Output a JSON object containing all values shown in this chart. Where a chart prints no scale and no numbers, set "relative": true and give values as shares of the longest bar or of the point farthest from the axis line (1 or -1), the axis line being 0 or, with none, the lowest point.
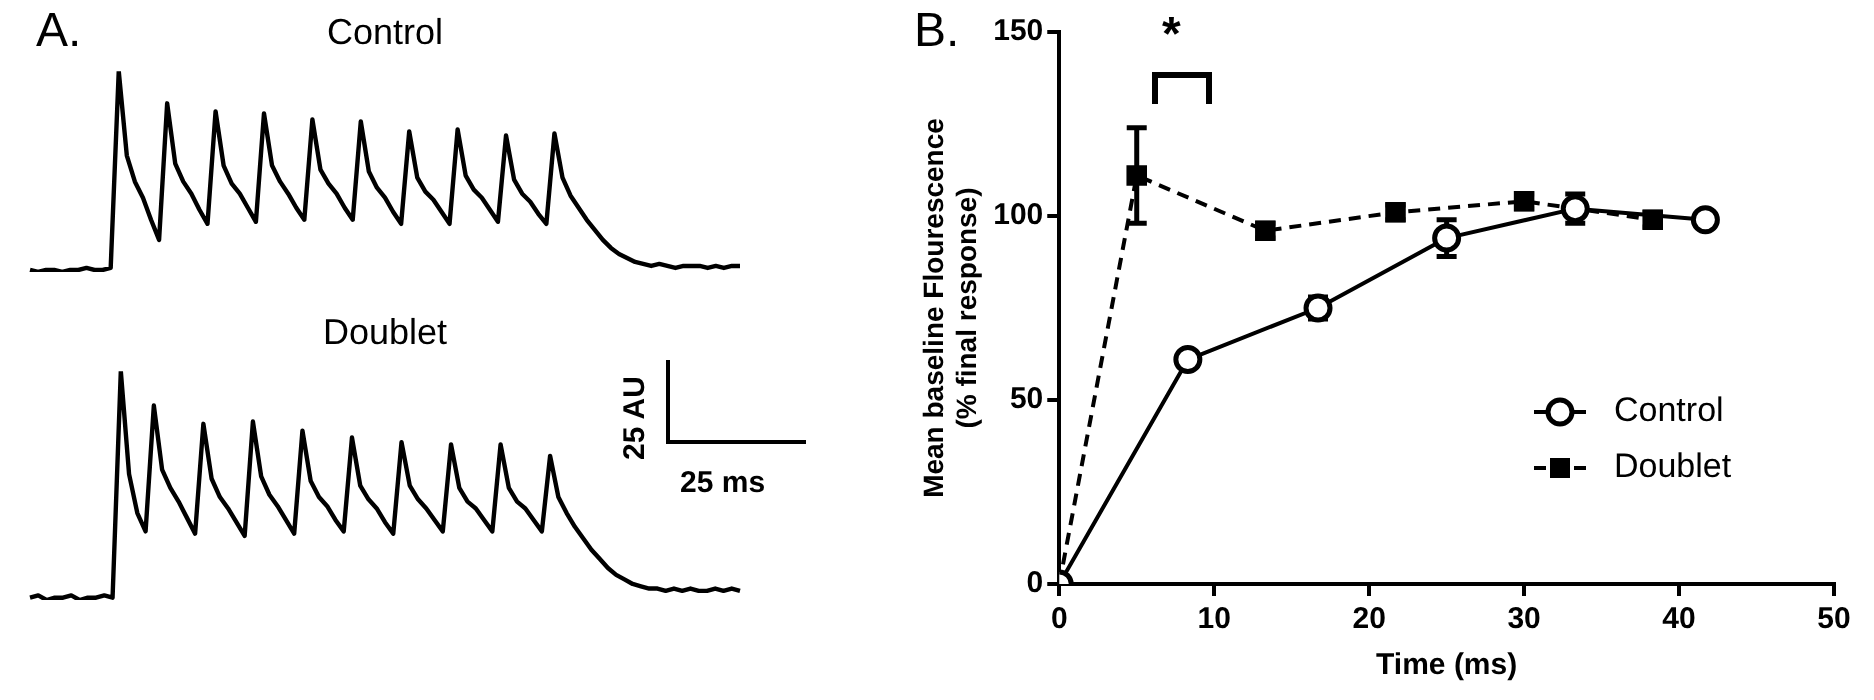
{
  "chart_data": [
    {
      "type": "line",
      "title": "Control",
      "relative": true,
      "marker": "none",
      "annotations": [
        "A."
      ],
      "categories": [
        null,
        null,
        null,
        null,
        null,
        null,
        null,
        null,
        null,
        null,
        null,
        null,
        null,
        null,
        null,
        null,
        null,
        null,
        null,
        null,
        null,
        null,
        null,
        null,
        null,
        null,
        null,
        null,
        null,
        null,
        null,
        null,
        null,
        null,
        null,
        null,
        null,
        null,
        null,
        null,
        null,
        null,
        null,
        null,
        null,
        null,
        null,
        null,
        null,
        null,
        null,
        null,
        null,
        null,
        null,
        null,
        null,
        null,
        null,
        null,
        null,
        null,
        null,
        null,
        null,
        null,
        null,
        null,
        null,
        null,
        null,
        null,
        null,
        null,
        null,
        null,
        null,
        null,
        null,
        null,
        null,
        null,
        null,
        null,
        null,
        null,
        null,
        null,
        null
      ],
      "series": [
        {
          "color": "#000000",
          "values": [
            0.01,
            0.0,
            0.01,
            0.01,
            0.0,
            0.01,
            0.01,
            0.02,
            0.01,
            0.01,
            0.02,
            1.0,
            0.58,
            0.45,
            0.37,
            0.26,
            0.16,
            0.84,
            0.54,
            0.45,
            0.39,
            0.31,
            0.24,
            0.8,
            0.53,
            0.44,
            0.39,
            0.32,
            0.25,
            0.79,
            0.53,
            0.45,
            0.39,
            0.32,
            0.26,
            0.76,
            0.51,
            0.44,
            0.39,
            0.32,
            0.26,
            0.75,
            0.5,
            0.42,
            0.37,
            0.3,
            0.24,
            0.7,
            0.47,
            0.4,
            0.36,
            0.3,
            0.24,
            0.71,
            0.48,
            0.41,
            0.37,
            0.31,
            0.25,
            0.68,
            0.46,
            0.39,
            0.35,
            0.29,
            0.24,
            0.69,
            0.47,
            0.38,
            0.32,
            0.26,
            0.21,
            0.16,
            0.12,
            0.09,
            0.07,
            0.05,
            0.04,
            0.03,
            0.04,
            0.03,
            0.02,
            0.03,
            0.03,
            0.03,
            0.02,
            0.03,
            0.02,
            0.03,
            0.03
          ]
        }
      ]
    },
    {
      "type": "line",
      "title": "Doublet",
      "relative": true,
      "marker": "none",
      "annotations": [
        "25 AU",
        "25 ms"
      ],
      "categories": [
        null,
        null,
        null,
        null,
        null,
        null,
        null,
        null,
        null,
        null,
        null,
        null,
        null,
        null,
        null,
        null,
        null,
        null,
        null,
        null,
        null,
        null,
        null,
        null,
        null,
        null,
        null,
        null,
        null,
        null,
        null,
        null,
        null,
        null,
        null,
        null,
        null,
        null,
        null,
        null,
        null,
        null,
        null,
        null,
        null,
        null,
        null,
        null,
        null,
        null,
        null,
        null,
        null,
        null,
        null,
        null,
        null,
        null,
        null,
        null,
        null,
        null,
        null,
        null,
        null,
        null,
        null,
        null,
        null,
        null,
        null,
        null,
        null,
        null,
        null,
        null,
        null,
        null,
        null,
        null,
        null,
        null,
        null,
        null,
        null,
        null,
        null
      ],
      "series": [
        {
          "color": "#000000",
          "values": [
            0.01,
            0.02,
            0.0,
            0.01,
            0.01,
            0.02,
            0.0,
            0.01,
            0.01,
            0.02,
            0.01,
            1.0,
            0.55,
            0.38,
            0.3,
            0.85,
            0.57,
            0.49,
            0.43,
            0.36,
            0.29,
            0.77,
            0.53,
            0.45,
            0.4,
            0.34,
            0.28,
            0.78,
            0.54,
            0.46,
            0.41,
            0.35,
            0.29,
            0.74,
            0.52,
            0.45,
            0.41,
            0.35,
            0.3,
            0.71,
            0.5,
            0.44,
            0.4,
            0.34,
            0.29,
            0.69,
            0.5,
            0.44,
            0.4,
            0.35,
            0.3,
            0.68,
            0.49,
            0.43,
            0.4,
            0.35,
            0.3,
            0.68,
            0.49,
            0.43,
            0.4,
            0.35,
            0.3,
            0.63,
            0.45,
            0.38,
            0.32,
            0.27,
            0.22,
            0.18,
            0.14,
            0.11,
            0.09,
            0.07,
            0.06,
            0.05,
            0.05,
            0.04,
            0.05,
            0.04,
            0.05,
            0.04,
            0.04,
            0.05,
            0.04,
            0.05,
            0.04
          ]
        }
      ]
    },
    {
      "type": "line",
      "xlabel": "Time (ms)",
      "ylabel": "Mean baseline Flourescence\n(% final response)",
      "annotations": [
        "B.",
        "*"
      ],
      "xlim": [
        0,
        50
      ],
      "xticks": [
        0,
        10,
        20,
        30,
        40,
        50
      ],
      "ylim": [
        0,
        150
      ],
      "yticks": [
        0,
        50,
        100,
        150
      ],
      "grid": false,
      "legend": "bottom right",
      "series": [
        {
          "name": "Control",
          "color": "#000000",
          "marker": "circle",
          "line_style": "solid",
          "x": [
            0,
            8.3,
            16.7,
            25,
            33.3,
            41.7
          ],
          "values": [
            0,
            61,
            75,
            94,
            102,
            99
          ],
          "errors": [
            null,
            null,
            3,
            5,
            4,
            null
          ]
        },
        {
          "name": "Doublet",
          "color": "#000000",
          "marker": "square",
          "line_style": "dashed",
          "x": [
            0,
            5,
            13.3,
            21.7,
            30,
            38.3
          ],
          "values": [
            0,
            111,
            96,
            101,
            104,
            99
          ],
          "errors": [
            null,
            13,
            2,
            2,
            2,
            2
          ]
        }
      ]
    }
  ]
}
